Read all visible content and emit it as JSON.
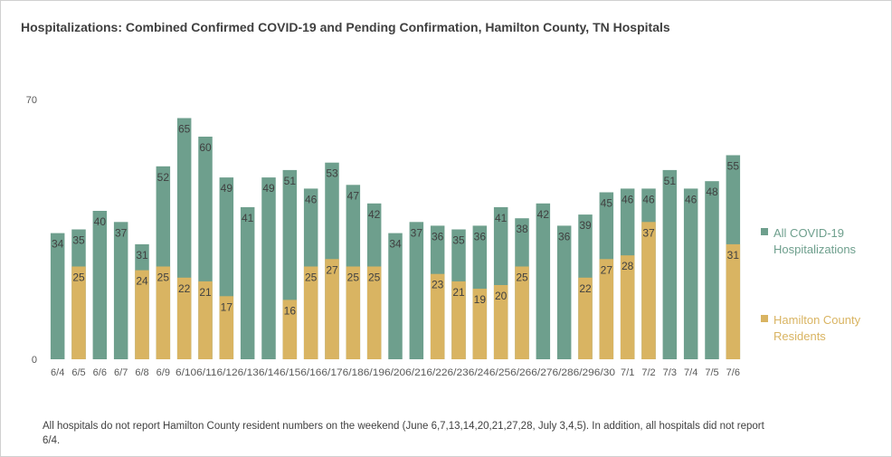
{
  "chart_data": {
    "type": "bar",
    "title": "Hospitalizations: Combined Confirmed COVID-19 and Pending Confirmation, Hamilton County, TN Hospitals",
    "categories": [
      "6/4",
      "6/5",
      "6/6",
      "6/7",
      "6/8",
      "6/9",
      "6/10",
      "6/11",
      "6/12",
      "6/13",
      "6/14",
      "6/15",
      "6/16",
      "6/17",
      "6/18",
      "6/19",
      "6/20",
      "6/21",
      "6/22",
      "6/23",
      "6/24",
      "6/25",
      "6/26",
      "6/27",
      "6/28",
      "6/29",
      "6/30",
      "7/1",
      "7/2",
      "7/3",
      "7/4",
      "7/5",
      "7/6"
    ],
    "category_labels": [
      "6/4",
      "6/5",
      "6/6",
      "6/7",
      "6/8",
      "6/9",
      "6/106/116/126/136/146/156/166/176/186/196/206/216/226/236/246/256/266/276/286/296/30",
      "",
      "",
      "",
      "",
      "",
      "",
      "",
      "",
      "",
      "",
      "",
      "",
      "",
      "",
      "",
      "",
      "",
      "",
      "",
      "",
      "7/1",
      "7/2",
      "7/3",
      "7/4",
      "7/5",
      "7/6"
    ],
    "series": [
      {
        "name": "All COVID-19 Hospitalizations",
        "color": "#6e9f8d",
        "values": [
          34,
          35,
          40,
          37,
          31,
          52,
          65,
          60,
          49,
          41,
          49,
          51,
          46,
          53,
          47,
          42,
          34,
          37,
          36,
          35,
          36,
          41,
          38,
          42,
          36,
          39,
          45,
          46,
          46,
          51,
          46,
          48,
          55
        ]
      },
      {
        "name": "Hamilton County Residents",
        "color": "#d9b462",
        "values": [
          null,
          25,
          null,
          null,
          24,
          25,
          22,
          21,
          17,
          null,
          null,
          16,
          25,
          27,
          25,
          25,
          null,
          null,
          23,
          21,
          19,
          20,
          25,
          null,
          null,
          22,
          27,
          28,
          37,
          null,
          null,
          null,
          31
        ]
      }
    ],
    "ylim": [
      0,
      70
    ],
    "y_ticks": [
      0,
      70
    ],
    "grid": false,
    "legend_position": "right"
  },
  "legend": {
    "items": [
      {
        "label": "All COVID-19 Hospitalizations",
        "color": "#6e9f8d"
      },
      {
        "label": "Hamilton County Residents",
        "color": "#d9b462"
      }
    ]
  },
  "footnote": "All hospitals do not report Hamilton County resident numbers on the weekend (June 6,7,13,14,20,21,27,28, July 3,4,5). In addition, all hospitals did not report 6/4."
}
